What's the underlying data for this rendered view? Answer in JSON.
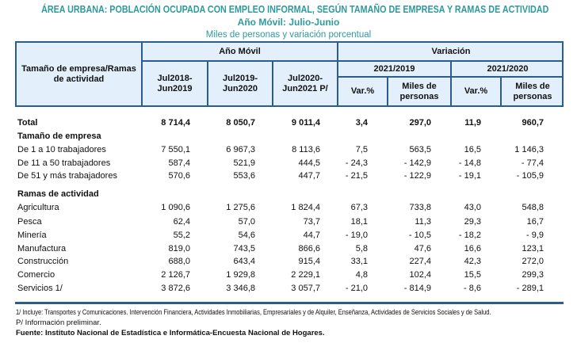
{
  "title": "ÁREA URBANA: POBLACIÓN OCUPADA CON EMPLEO INFORMAL, SEGÚN TAMAÑO DE EMPRESA Y RAMAS DE ACTIVIDAD",
  "subtitle": "Año Móvil: Julio-Junio",
  "units": "Miles de personas y variación porcentual",
  "colors": {
    "title": "#2e9a9c",
    "header_bg": "#e3f0fb",
    "border": "#2c5d8f"
  },
  "header": {
    "first_col": "Tamaño de empresa/Ramas de actividad",
    "ano_movil": "Año Móvil",
    "variacion": "Variación",
    "periods": [
      "Jul2018-Jun2019",
      "Jul2019-Jun2020",
      "Jul2020-Jun2021 P/"
    ],
    "var_groups": [
      "2021/2019",
      "2021/2020"
    ],
    "var_cols": [
      "Var.%",
      "Miles de personas",
      "Var.%",
      "Miles de personas"
    ]
  },
  "rows": [
    {
      "label": "Total",
      "bold": true,
      "values": [
        "8 714,4",
        "8 050,7",
        "9 011,4",
        "3,4",
        "297,0",
        "11,9",
        "960,7"
      ]
    },
    {
      "label": "Tamaño de empresa",
      "bold": true,
      "section": true
    },
    {
      "label": "De 1 a 10 trabajadores",
      "values": [
        "7 550,1",
        "6 967,3",
        "8 113,6",
        "7,5",
        "563,5",
        "16,5",
        "1 146,3"
      ]
    },
    {
      "label": "De 11 a 50 trabajadores",
      "values": [
        "587,4",
        "521,9",
        "444,5",
        "- 24,3",
        "- 142,9",
        "- 14,8",
        "- 77,4"
      ]
    },
    {
      "label": "De 51 y más trabajadores",
      "values": [
        "570,6",
        "553,6",
        "447,7",
        "- 21,5",
        "- 122,9",
        "- 19,1",
        "- 105,9"
      ]
    },
    {
      "label": "Ramas de actividad",
      "bold": true,
      "section": true
    },
    {
      "label": "Agricultura",
      "values": [
        "1 090,6",
        "1 275,6",
        "1 824,4",
        "67,3",
        "733,8",
        "43,0",
        "548,8"
      ]
    },
    {
      "label": "Pesca",
      "values": [
        "62,4",
        "57,0",
        "73,7",
        "18,1",
        "11,3",
        "29,3",
        "16,7"
      ]
    },
    {
      "label": "Minería",
      "values": [
        "55,2",
        "54,6",
        "44,7",
        "- 19,0",
        "- 10,5",
        "- 18,2",
        "- 9,9"
      ]
    },
    {
      "label": "Manufactura",
      "values": [
        "819,0",
        "743,5",
        "866,6",
        "5,8",
        "47,6",
        "16,6",
        "123,1"
      ]
    },
    {
      "label": "Construcción",
      "values": [
        "688,0",
        "643,4",
        "915,4",
        "33,1",
        "227,4",
        "42,3",
        "272,0"
      ]
    },
    {
      "label": "Comercio",
      "values": [
        "2 126,7",
        "1 929,8",
        "2 229,1",
        "4,8",
        "102,4",
        "15,5",
        "299,3"
      ]
    },
    {
      "label": "Servicios 1/",
      "values": [
        "3 872,6",
        "3 346,8",
        "3 057,7",
        "- 21,0",
        "- 814,9",
        "- 8,6",
        "- 289,1"
      ]
    }
  ],
  "footnotes": [
    "1/ Incluye: Transportes y Comunicaciones. Intervención Financiera, Actividades Inmobiliarias, Empresariales y de Alquiler, Enseñanza, Actividades de Servicios Sociales y de Salud.",
    "P/ Información preliminar."
  ],
  "source": "Fuente: Instituto Nacional de Estadística e Informática-Encuesta Nacional de Hogares."
}
